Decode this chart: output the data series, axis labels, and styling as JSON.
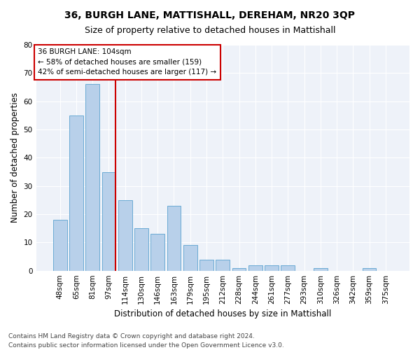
{
  "title": "36, BURGH LANE, MATTISHALL, DEREHAM, NR20 3QP",
  "subtitle": "Size of property relative to detached houses in Mattishall",
  "xlabel": "Distribution of detached houses by size in Mattishall",
  "ylabel": "Number of detached properties",
  "categories": [
    "48sqm",
    "65sqm",
    "81sqm",
    "97sqm",
    "114sqm",
    "130sqm",
    "146sqm",
    "163sqm",
    "179sqm",
    "195sqm",
    "212sqm",
    "228sqm",
    "244sqm",
    "261sqm",
    "277sqm",
    "293sqm",
    "310sqm",
    "326sqm",
    "342sqm",
    "359sqm",
    "375sqm"
  ],
  "values": [
    18,
    55,
    66,
    35,
    25,
    15,
    13,
    23,
    9,
    4,
    4,
    1,
    2,
    2,
    2,
    0,
    1,
    0,
    0,
    1,
    0
  ],
  "bar_color": "#b8d0ea",
  "bar_edge_color": "#6aaad4",
  "annotation_text_line1": "36 BURGH LANE: 104sqm",
  "annotation_text_line2": "← 58% of detached houses are smaller (159)",
  "annotation_text_line3": "42% of semi-detached houses are larger (117) →",
  "annotation_box_facecolor": "#ffffff",
  "annotation_box_edgecolor": "#cc0000",
  "vline_color": "#cc0000",
  "ylim": [
    0,
    80
  ],
  "yticks": [
    0,
    10,
    20,
    30,
    40,
    50,
    60,
    70,
    80
  ],
  "plot_bg_color": "#eef2f9",
  "grid_color": "#ffffff",
  "footer_line1": "Contains HM Land Registry data © Crown copyright and database right 2024.",
  "footer_line2": "Contains public sector information licensed under the Open Government Licence v3.0.",
  "title_fontsize": 10,
  "subtitle_fontsize": 9,
  "xlabel_fontsize": 8.5,
  "ylabel_fontsize": 8.5,
  "tick_fontsize": 7.5,
  "annotation_fontsize": 7.5,
  "footer_fontsize": 6.5,
  "vline_x": 3.42
}
